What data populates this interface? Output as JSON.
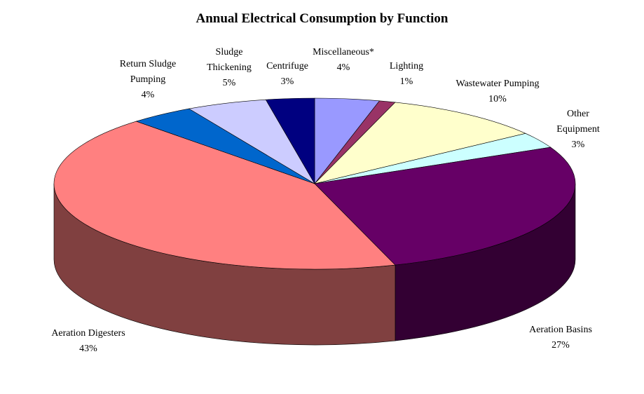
{
  "chart_data": {
    "type": "pie3d",
    "title": "Annual Electrical Consumption by Function",
    "categories": [
      "Miscellaneous*",
      "Lighting",
      "Wastewater Pumping",
      "Other Equipment",
      "Aeration Basins",
      "Aeration Digesters",
      "Return Sludge Pumping",
      "Sludge Thickening",
      "Centrifuge"
    ],
    "values": [
      4,
      1,
      10,
      3,
      27,
      43,
      4,
      5,
      3
    ],
    "value_labels": [
      "4%",
      "1%",
      "10%",
      "3%",
      "27%",
      "43%",
      "4%",
      "5%",
      "3%"
    ],
    "colors": [
      "#9999ff",
      "#993366",
      "#ffffcc",
      "#ccffff",
      "#660066",
      "#ff8080",
      "#0066cc",
      "#ccccff",
      "#000080"
    ]
  }
}
